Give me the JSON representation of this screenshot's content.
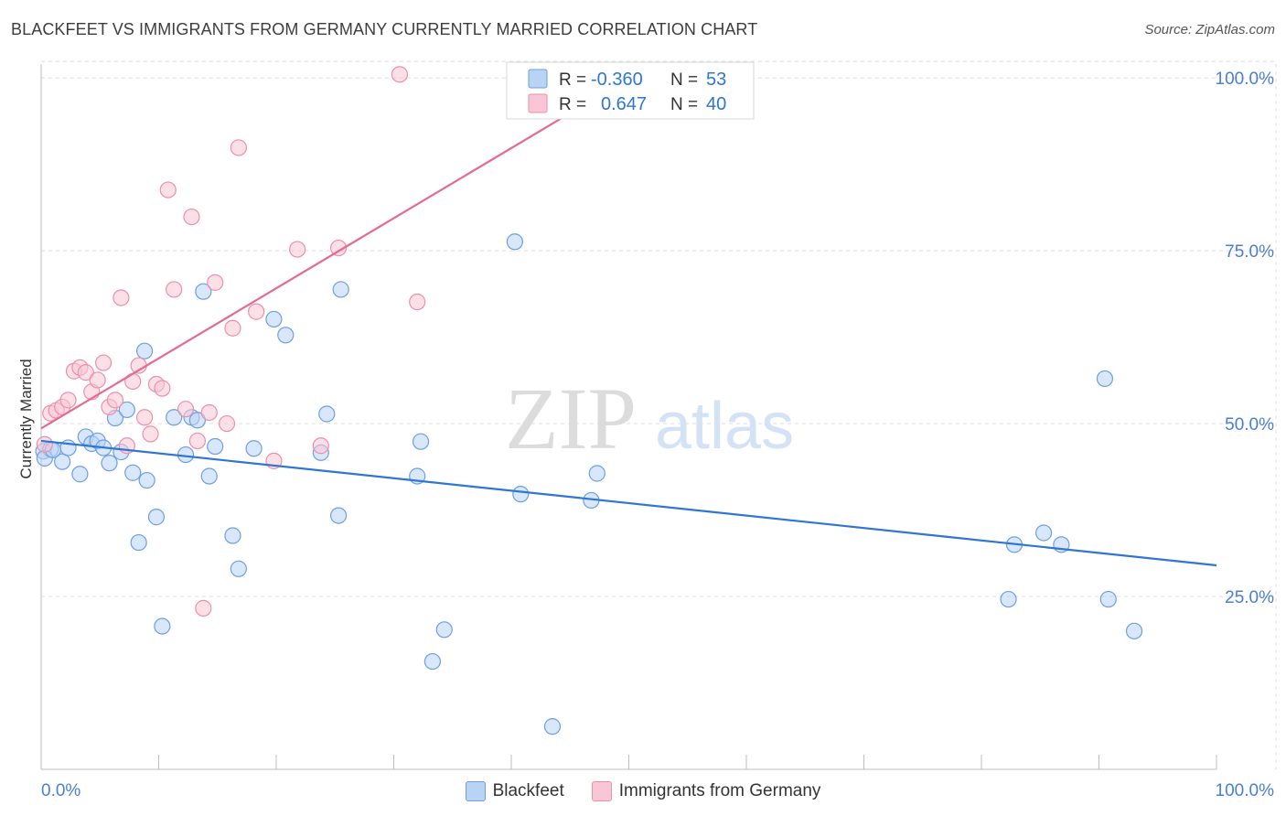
{
  "header": {
    "title": "BLACKFEET VS IMMIGRANTS FROM GERMANY CURRENTLY MARRIED CORRELATION CHART",
    "source": "Source: ZipAtlas.com"
  },
  "watermark": {
    "zip": "ZIP",
    "atlas": "atlas"
  },
  "colors": {
    "blue_fill": "#b9d3f5",
    "blue_stroke": "#6d9fe0",
    "blue_line": "#2e76d2",
    "pink_fill": "#f8c6d5",
    "pink_stroke": "#ec8faa",
    "pink_line": "#e46a92",
    "axis_text": "#4a7fd0",
    "grid": "#dcdcdc"
  },
  "legend": {
    "rows": [
      {
        "r_label": "R =",
        "r_value": "-0.360",
        "n_label": "N =",
        "n_value": "53"
      },
      {
        "r_label": "R =",
        "r_value": "0.647",
        "n_label": "N =",
        "n_value": "40"
      }
    ]
  },
  "chart_data": {
    "type": "scatter",
    "title": "BLACKFEET VS IMMIGRANTS FROM GERMANY CURRENTLY MARRIED CORRELATION CHART",
    "xlabel": "",
    "ylabel": "Currently Married",
    "xlim": [
      0,
      100
    ],
    "ylim": [
      0,
      102
    ],
    "x_tick_labels": [
      "0.0%",
      "100.0%"
    ],
    "y_tick_labels": [
      "25.0%",
      "50.0%",
      "75.0%",
      "100.0%"
    ],
    "y_ticks": [
      25,
      50,
      75,
      100
    ],
    "grid": true,
    "legend_position": "top-center",
    "series": [
      {
        "name": "Blackfeet",
        "r": -0.36,
        "n": 53,
        "trend": {
          "x": [
            0,
            100
          ],
          "y": [
            47.5,
            29.5
          ]
        },
        "points": [
          [
            0.2,
            46.0
          ],
          [
            0.8,
            46.3
          ],
          [
            1.8,
            44.5
          ],
          [
            2.3,
            46.5
          ],
          [
            3.3,
            42.7
          ],
          [
            3.8,
            48.1
          ],
          [
            4.3,
            47.1
          ],
          [
            4.8,
            47.5
          ],
          [
            5.3,
            46.5
          ],
          [
            5.8,
            44.3
          ],
          [
            6.3,
            50.8
          ],
          [
            6.8,
            45.9
          ],
          [
            7.3,
            52.0
          ],
          [
            7.8,
            42.9
          ],
          [
            8.3,
            32.8
          ],
          [
            8.8,
            60.5
          ],
          [
            9.0,
            41.8
          ],
          [
            9.8,
            36.5
          ],
          [
            10.3,
            20.7
          ],
          [
            11.3,
            50.9
          ],
          [
            12.3,
            45.5
          ],
          [
            12.8,
            50.9
          ],
          [
            13.3,
            50.5
          ],
          [
            13.8,
            69.1
          ],
          [
            14.3,
            42.4
          ],
          [
            14.8,
            46.7
          ],
          [
            16.3,
            33.8
          ],
          [
            16.8,
            29.0
          ],
          [
            18.1,
            46.4
          ],
          [
            19.8,
            65.1
          ],
          [
            20.8,
            62.8
          ],
          [
            23.8,
            45.8
          ],
          [
            24.3,
            51.4
          ],
          [
            25.3,
            36.7
          ],
          [
            25.5,
            69.4
          ],
          [
            32.0,
            42.4
          ],
          [
            32.3,
            47.4
          ],
          [
            33.3,
            15.6
          ],
          [
            34.3,
            20.2
          ],
          [
            40.3,
            76.3
          ],
          [
            40.8,
            39.8
          ],
          [
            43.5,
            6.2
          ],
          [
            46.8,
            38.9
          ],
          [
            47.3,
            42.8
          ],
          [
            82.3,
            24.6
          ],
          [
            82.8,
            32.5
          ],
          [
            85.3,
            34.2
          ],
          [
            86.8,
            32.5
          ],
          [
            90.5,
            56.5
          ],
          [
            90.8,
            24.6
          ],
          [
            93.0,
            20.0
          ],
          [
            0.3,
            45.0
          ],
          [
            1.0,
            46.2
          ]
        ]
      },
      {
        "name": "Immigrants from Germany",
        "r": 0.647,
        "n": 40,
        "trend": {
          "x": [
            0,
            52
          ],
          "y": [
            49.3,
            102
          ]
        },
        "points": [
          [
            0.3,
            47.0
          ],
          [
            0.8,
            51.5
          ],
          [
            1.3,
            51.9
          ],
          [
            1.8,
            52.4
          ],
          [
            2.3,
            53.4
          ],
          [
            2.8,
            57.6
          ],
          [
            3.3,
            58.1
          ],
          [
            3.8,
            57.4
          ],
          [
            4.3,
            54.6
          ],
          [
            4.8,
            56.3
          ],
          [
            5.3,
            58.8
          ],
          [
            5.8,
            52.4
          ],
          [
            6.3,
            53.4
          ],
          [
            6.8,
            68.2
          ],
          [
            7.3,
            46.8
          ],
          [
            7.8,
            56.1
          ],
          [
            8.3,
            58.4
          ],
          [
            8.8,
            50.9
          ],
          [
            9.3,
            48.5
          ],
          [
            9.8,
            55.7
          ],
          [
            10.3,
            55.1
          ],
          [
            10.8,
            83.8
          ],
          [
            11.3,
            69.4
          ],
          [
            12.3,
            52.1
          ],
          [
            12.8,
            79.9
          ],
          [
            13.3,
            47.5
          ],
          [
            13.8,
            23.3
          ],
          [
            14.3,
            51.6
          ],
          [
            14.8,
            70.4
          ],
          [
            15.8,
            50.0
          ],
          [
            16.3,
            63.8
          ],
          [
            16.8,
            89.9
          ],
          [
            18.3,
            66.2
          ],
          [
            19.8,
            44.6
          ],
          [
            21.8,
            75.2
          ],
          [
            23.8,
            46.8
          ],
          [
            25.3,
            75.4
          ],
          [
            32.0,
            67.6
          ],
          [
            30.5,
            100.5
          ],
          [
            47.3,
            100.5
          ]
        ]
      }
    ]
  }
}
